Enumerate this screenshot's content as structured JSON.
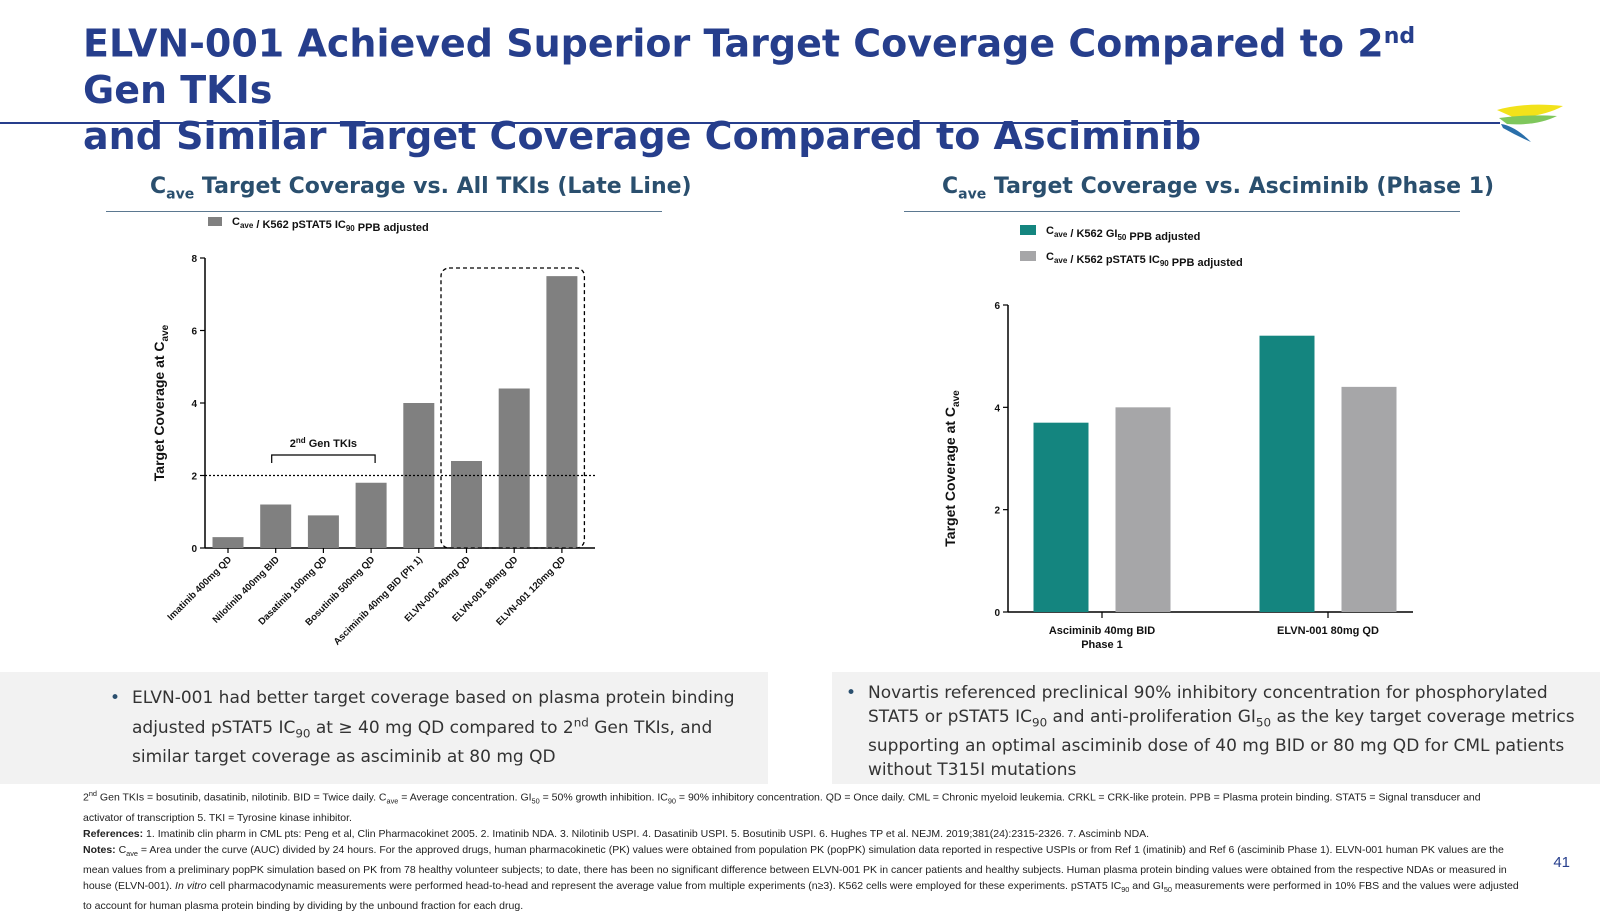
{
  "slide": {
    "title_line1": "ELVN-001 Achieved Superior Target Coverage Compared to 2",
    "title_sup": "nd",
    "title_line1_end": " Gen TKIs",
    "title_line2": "and Similar Target Coverage Compared to Asciminib",
    "page_number": "41"
  },
  "left_panel": {
    "heading_c": "C",
    "heading_sub": "ave",
    "heading_rest": " Target Coverage vs. All TKIs (Late Line)",
    "bullet": "ELVN-001 had better target coverage based on plasma protein binding adjusted pSTAT5 IC90 at ≥ 40 mg QD compared to 2nd Gen TKIs, and similar target coverage as asciminib at 80 mg QD"
  },
  "right_panel": {
    "heading_c": "C",
    "heading_sub": "ave",
    "heading_rest": " Target Coverage vs. Asciminib (Phase 1)",
    "bullet": "Novartis referenced preclinical 90% inhibitory concentration for phosphorylated STAT5 or pSTAT5 IC90 and anti-proliferation GI50 as the key target coverage metrics supporting an optimal asciminib dose of 40 mg BID or 80 mg QD for CML patients without T315I mutations"
  },
  "chart_data": [
    {
      "type": "bar",
      "categories": [
        "Imatinib 400mg QD",
        "Nilotinib 400mg BID",
        "Dasatinib 100mg QD",
        "Bosutinib 500mg QD",
        "Asciminib 40mg BID (Ph 1)",
        "ELVN-001 40mg QD",
        "ELVN-001 80mg QD",
        "ELVN-001 120mg QD"
      ],
      "series": [
        {
          "name": "Cave / K562 pSTAT5 IC90 PPB adjusted",
          "values": [
            0.3,
            1.2,
            0.9,
            1.8,
            4.0,
            2.4,
            4.4,
            7.5
          ],
          "color": "#808080"
        }
      ],
      "ylabel": "Target Coverage at Cave",
      "ylim": [
        0,
        8
      ],
      "yticks": [
        "0",
        "2",
        "4",
        "6",
        "8"
      ],
      "reference_line": 2,
      "annotation": "2nd Gen TKIs",
      "highlight": "ELVN-001 bars (dashed box)"
    },
    {
      "type": "bar",
      "categories": [
        "Asciminib 40mg BID Phase 1",
        "ELVN-001 80mg QD"
      ],
      "series": [
        {
          "name": "Cave / K562 GI50 PPB adjusted",
          "values": [
            3.7,
            5.4
          ],
          "color": "#14857f"
        },
        {
          "name": "Cave / K562 pSTAT5 IC90 PPB adjusted",
          "values": [
            4.0,
            4.4
          ],
          "color": "#a6a6a8"
        }
      ],
      "ylabel": "Target Coverage at Cave",
      "ylim": [
        0,
        6
      ],
      "yticks": [
        "0",
        "2",
        "4",
        "6"
      ]
    }
  ],
  "footer": {
    "line1": "2nd Gen TKIs = bosutinib, dasatinib, nilotinib. BID = Twice daily. Cave = Average concentration. GI50 = 50% growth inhibition. IC90 = 90% inhibitory concentration. QD = Once daily. CML = Chronic myeloid leukemia. CRKL = CRK-like protein. PPB = Plasma protein binding. STAT5 = Signal transducer and activator of transcription 5. TKI = Tyrosine kinase inhibitor.",
    "references_label": "References:",
    "references": " 1. Imatinib clin pharm in CML pts: Peng et al, Clin Pharmacokinet 2005. 2. Imatinib NDA. 3. Nilotinib USPI. 4. Dasatinib USPI. 5. Bosutinib USPI. 6. Hughes TP et al. NEJM. 2019;381(24):2315-2326. 7. Asciminb NDA.",
    "notes_label": "Notes:",
    "notes": " Cave = Area under the curve (AUC) divided by 24 hours. For the approved drugs, human pharmacokinetic (PK) values were obtained from population PK (popPK) simulation data reported in respective USPIs or from Ref 1 (imatinib) and Ref 6 (asciminib Phase 1). ELVN-001 human PK values are the mean values from a preliminary popPK simulation based on PK from 78 healthy volunteer subjects; to date, there has been no significant difference between ELVN-001 PK in cancer patients and healthy subjects. Human plasma protein binding values were obtained from the respective NDAs or measured in house (ELVN-001). In vitro cell pharmacodynamic measurements were performed head-to-head and represent the average value from multiple experiments (n≥3). K562 cells were employed for these experiments. pSTAT5 IC90 and GI50 measurements were performed in 10% FBS and the values were adjusted to account for human plasma protein binding by dividing by the unbound fraction for each drug."
  }
}
